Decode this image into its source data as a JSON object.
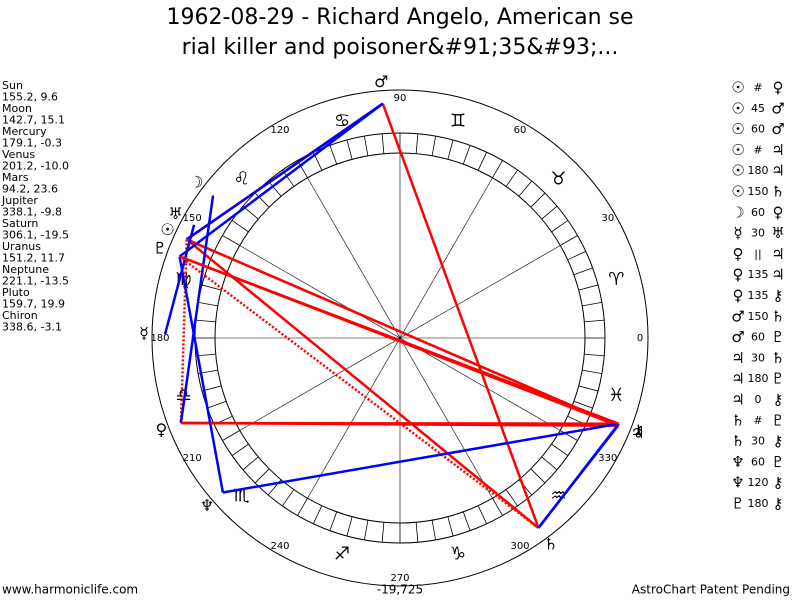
{
  "header": {
    "title_lines": [
      "1962-08-29 - Richard Angelo, American se",
      "rial killer and poisoner&#91;35&#93;..."
    ]
  },
  "planets": [
    {
      "name": "Sun",
      "coords": "155.2, 9.6",
      "glyph": "☉"
    },
    {
      "name": "Moon",
      "coords": "142.7, 15.1",
      "glyph": "☽"
    },
    {
      "name": "Mercury",
      "coords": "179.1, -0.3",
      "glyph": "☿"
    },
    {
      "name": "Venus",
      "coords": "201.2, -10.0",
      "glyph": "♀"
    },
    {
      "name": "Mars",
      "coords": "94.2, 23.6",
      "glyph": "♂"
    },
    {
      "name": "Jupiter",
      "coords": "338.1, -9.8",
      "glyph": "♃"
    },
    {
      "name": "Saturn",
      "coords": "306.1, -19.5",
      "glyph": "♄"
    },
    {
      "name": "Uranus",
      "coords": "151.2, 11.7",
      "glyph": "♅"
    },
    {
      "name": "Neptune",
      "coords": "221.1, -13.5",
      "glyph": "♆"
    },
    {
      "name": "Pluto",
      "coords": "159.7, 19.9",
      "glyph": "♇"
    },
    {
      "name": "Chiron",
      "coords": "338.6, -3.1",
      "glyph": "⚷"
    }
  ],
  "aspects": [
    [
      "☉",
      "#",
      "♀"
    ],
    [
      "☉",
      "45",
      "♂"
    ],
    [
      "☉",
      "60",
      "♂"
    ],
    [
      "☉",
      "#",
      "♃"
    ],
    [
      "☉",
      "180",
      "♃"
    ],
    [
      "☉",
      "150",
      "♄"
    ],
    [
      "☽",
      "60",
      "♀"
    ],
    [
      "☿",
      "30",
      "♅"
    ],
    [
      "♀",
      "||",
      "♃"
    ],
    [
      "♀",
      "135",
      "♃"
    ],
    [
      "♀",
      "135",
      "⚷"
    ],
    [
      "♂",
      "150",
      "♄"
    ],
    [
      "♂",
      "60",
      "♇"
    ],
    [
      "♃",
      "30",
      "♄"
    ],
    [
      "♃",
      "180",
      "♇"
    ],
    [
      "♃",
      "0",
      "⚷"
    ],
    [
      "♄",
      "#",
      "♇"
    ],
    [
      "♄",
      "30",
      "⚷"
    ],
    [
      "♆",
      "60",
      "♇"
    ],
    [
      "♆",
      "120",
      "⚷"
    ],
    [
      "♇",
      "180",
      "⚷"
    ]
  ],
  "signs": [
    "♈",
    "♉",
    "♊",
    "♋",
    "♌",
    "♍",
    "♎",
    "♏",
    "♐",
    "♑",
    "♒",
    "♓"
  ],
  "degree_labels": [
    0,
    30,
    60,
    90,
    120,
    150,
    180,
    210,
    240,
    270,
    300,
    330
  ],
  "footer": {
    "left": "www.harmoniclife.com",
    "center": "-19,725",
    "right": "AstroChart Patent Pending"
  }
}
